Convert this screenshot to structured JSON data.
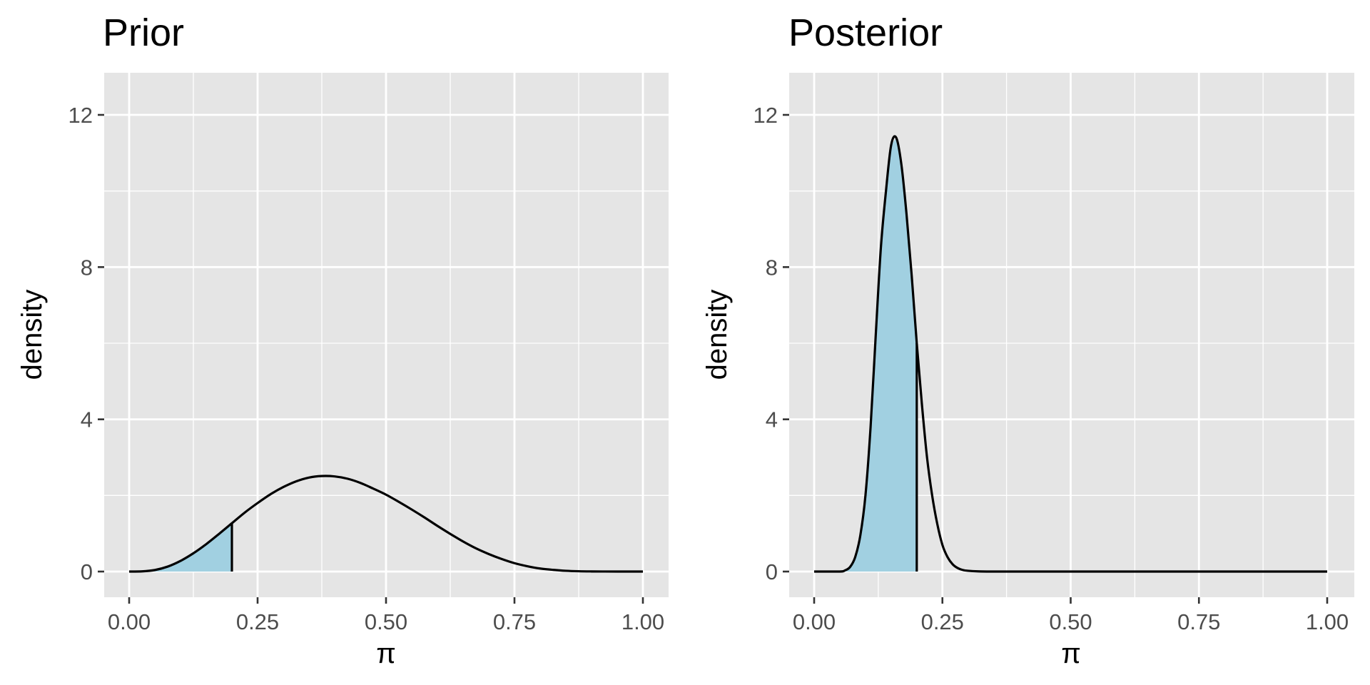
{
  "chart_data": [
    {
      "type": "area",
      "title": "Prior",
      "xlabel": "π",
      "ylabel": "density",
      "xlim": [
        0,
        1
      ],
      "ylim": [
        0,
        12
      ],
      "x_ticks": [
        0,
        0.25,
        0.5,
        0.75,
        1
      ],
      "x_tick_labels": [
        "0.00",
        "0.25",
        "0.50",
        "0.75",
        "1.00"
      ],
      "y_ticks": [
        0,
        4,
        8,
        12
      ],
      "y_tick_labels": [
        "0",
        "4",
        "8",
        "12"
      ],
      "grid": true,
      "shaded_region": [
        0,
        0.2
      ],
      "marker_line_x": 0.2,
      "colors": {
        "panel_bg": "#e5e5e5",
        "grid": "#ffffff",
        "curve": "#000000",
        "fill": "#a1d0e1"
      },
      "series": [
        {
          "x": [
            0,
            0.025,
            0.05,
            0.075,
            0.1,
            0.125,
            0.15,
            0.175,
            0.2,
            0.225,
            0.25,
            0.275,
            0.3,
            0.325,
            0.35,
            0.375,
            0.4,
            0.425,
            0.45,
            0.475,
            0.5,
            0.525,
            0.55,
            0.575,
            0.6,
            0.625,
            0.65,
            0.675,
            0.7,
            0.725,
            0.75,
            0.775,
            0.8,
            0.825,
            0.85,
            0.875,
            0.9,
            0.925,
            0.95,
            0.975,
            1
          ],
          "y": [
            0,
            0.005,
            0.04,
            0.13,
            0.28,
            0.48,
            0.72,
            0.99,
            1.27,
            1.55,
            1.8,
            2.03,
            2.22,
            2.37,
            2.47,
            2.51,
            2.5,
            2.44,
            2.33,
            2.18,
            2.02,
            1.83,
            1.63,
            1.42,
            1.2,
            0.99,
            0.79,
            0.61,
            0.46,
            0.33,
            0.22,
            0.14,
            0.08,
            0.045,
            0.02,
            0.008,
            0.003,
            0.001,
            0,
            0,
            0
          ]
        }
      ]
    },
    {
      "type": "area",
      "title": "Posterior",
      "xlabel": "π",
      "ylabel": "density",
      "xlim": [
        0,
        1
      ],
      "ylim": [
        0,
        12
      ],
      "x_ticks": [
        0,
        0.25,
        0.5,
        0.75,
        1
      ],
      "x_tick_labels": [
        "0.00",
        "0.25",
        "0.50",
        "0.75",
        "1.00"
      ],
      "y_ticks": [
        0,
        4,
        8,
        12
      ],
      "y_tick_labels": [
        "0",
        "4",
        "8",
        "12"
      ],
      "grid": true,
      "shaded_region": [
        0,
        0.2
      ],
      "marker_line_x": 0.2,
      "colors": {
        "panel_bg": "#e5e5e5",
        "grid": "#ffffff",
        "curve": "#000000",
        "fill": "#a1d0e1"
      },
      "series": [
        {
          "x": [
            0,
            0.05,
            0.06,
            0.07,
            0.08,
            0.09,
            0.1,
            0.11,
            0.12,
            0.13,
            0.14,
            0.15,
            0.16,
            0.17,
            0.18,
            0.19,
            0.2,
            0.21,
            0.22,
            0.23,
            0.24,
            0.25,
            0.26,
            0.27,
            0.28,
            0.29,
            0.3,
            0.32,
            0.35,
            0.4,
            1
          ],
          "y": [
            0,
            0,
            0.03,
            0.12,
            0.38,
            0.95,
            2.0,
            3.8,
            6.2,
            8.5,
            10.0,
            11.2,
            11.4,
            10.7,
            9.4,
            7.8,
            6.0,
            4.4,
            3.0,
            2.0,
            1.25,
            0.7,
            0.38,
            0.19,
            0.09,
            0.04,
            0.02,
            0.005,
            0,
            0,
            0
          ]
        }
      ]
    }
  ]
}
